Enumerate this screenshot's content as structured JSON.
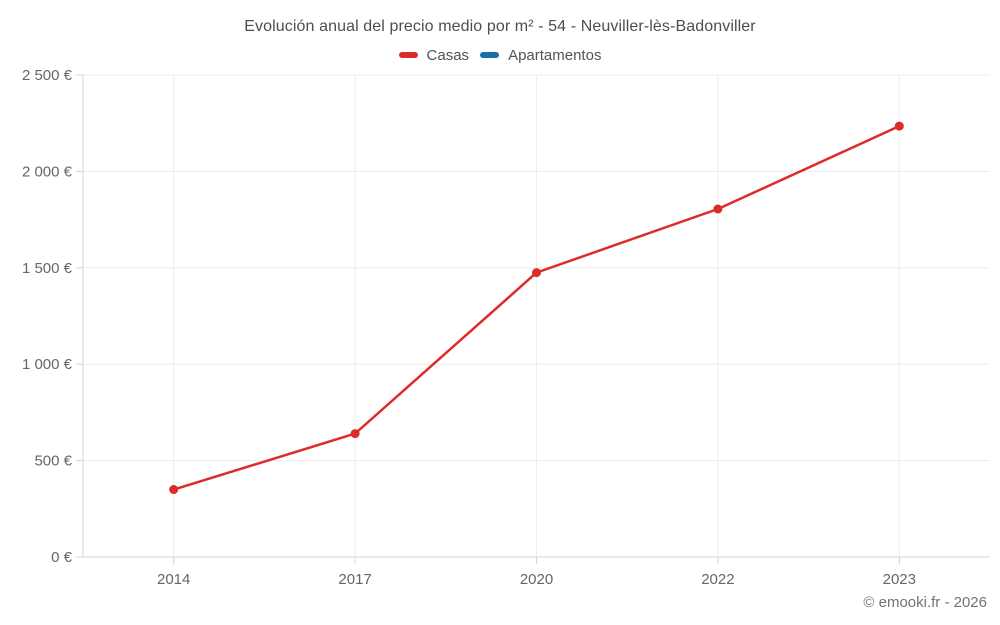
{
  "chart_data": {
    "type": "line",
    "title": "Evolución anual del precio medio por m² - 54 - Neuviller-lès-Badonviller",
    "categories": [
      "2014",
      "2017",
      "2020",
      "2022",
      "2023"
    ],
    "series": [
      {
        "name": "Casas",
        "color": "#dc2c28",
        "values": [
          350,
          640,
          1475,
          1805,
          2235
        ]
      },
      {
        "name": "Apartamentos",
        "color": "#1a6fa5",
        "values": []
      }
    ],
    "ylim": [
      0,
      2500
    ],
    "yticks": [
      0,
      500,
      1000,
      1500,
      2000,
      2500
    ],
    "ytick_labels": [
      "0 €",
      "500 €",
      "1 000 €",
      "1 500 €",
      "2 000 €",
      "2 500 €"
    ],
    "xlabel": "",
    "ylabel": "",
    "grid": true,
    "legend_position": "top",
    "copyright": "© emooki.fr - 2026",
    "colors": {
      "grid": "#ececec",
      "axis": "#d4d4d4",
      "tick_text": "#666666"
    }
  }
}
